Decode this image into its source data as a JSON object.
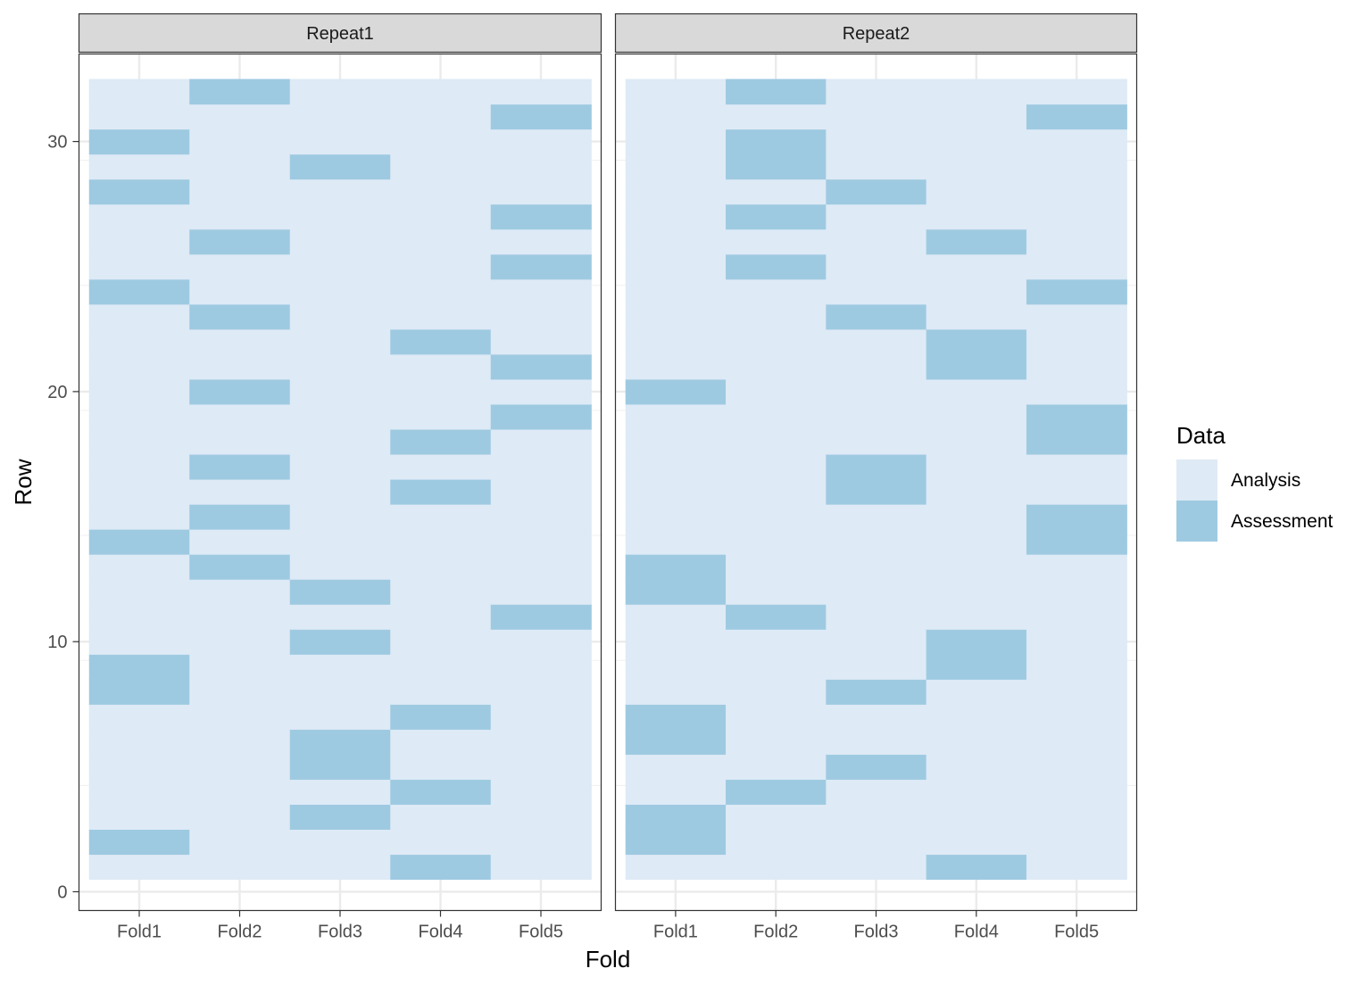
{
  "chart_data": {
    "type": "heatmap",
    "xlabel": "Fold",
    "ylabel": "Row",
    "x_categories": [
      "Fold1",
      "Fold2",
      "Fold3",
      "Fold4",
      "Fold5"
    ],
    "ylim": [
      -0.75,
      33.5
    ],
    "y_ticks": [
      0,
      10,
      20,
      30
    ],
    "rows": 32,
    "grid": true,
    "legend": {
      "title": "Data",
      "position": "right",
      "entries": [
        {
          "label": "Analysis",
          "color": "#deeaf6"
        },
        {
          "label": "Assessment",
          "color": "#9ecae1"
        }
      ]
    },
    "facets": [
      {
        "label": "Repeat1",
        "assessment_rows": {
          "Fold1": [
            2,
            8,
            9,
            14,
            24,
            28,
            30
          ],
          "Fold2": [
            13,
            15,
            17,
            20,
            23,
            26,
            32
          ],
          "Fold3": [
            3,
            5,
            6,
            10,
            12,
            29
          ],
          "Fold4": [
            1,
            4,
            7,
            16,
            18,
            22
          ],
          "Fold5": [
            11,
            19,
            21,
            25,
            27,
            31
          ]
        }
      },
      {
        "label": "Repeat2",
        "assessment_rows": {
          "Fold1": [
            2,
            3,
            6,
            7,
            12,
            13,
            20
          ],
          "Fold2": [
            4,
            11,
            25,
            27,
            29,
            30,
            32
          ],
          "Fold3": [
            5,
            8,
            16,
            17,
            23,
            28
          ],
          "Fold4": [
            1,
            9,
            10,
            21,
            22,
            26
          ],
          "Fold5": [
            14,
            15,
            18,
            19,
            24,
            31
          ]
        }
      }
    ]
  }
}
